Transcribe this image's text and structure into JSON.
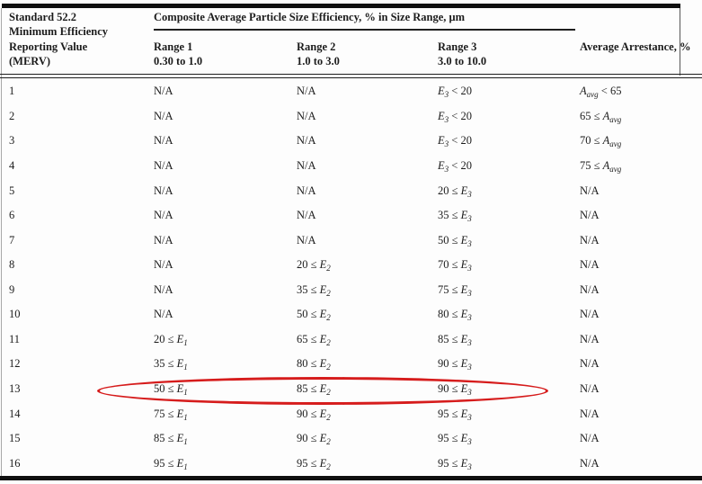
{
  "header": {
    "merv_lines": "Standard 52.2\nMinimum Efficiency\nReporting Value\n(MERV)",
    "composite_title": "Composite Average Particle Size Efficiency, % in Size Range, μm",
    "ranges": [
      {
        "name": "Range 1",
        "span": "0.30 to 1.0"
      },
      {
        "name": "Range 2",
        "span": "1.0 to 3.0"
      },
      {
        "name": "Range 3",
        "span": "3.0 to 10.0"
      }
    ],
    "arrestance_title": "Average Arrestance, %"
  },
  "rows": [
    {
      "merv": "1",
      "range1": "N/A",
      "range2": "N/A",
      "range3": "E_3 < 20",
      "arrestance": "A_avg < 65"
    },
    {
      "merv": "2",
      "range1": "N/A",
      "range2": "N/A",
      "range3": "E_3 < 20",
      "arrestance": "65 ≤ A_avg"
    },
    {
      "merv": "3",
      "range1": "N/A",
      "range2": "N/A",
      "range3": "E_3 < 20",
      "arrestance": "70 ≤ A_avg"
    },
    {
      "merv": "4",
      "range1": "N/A",
      "range2": "N/A",
      "range3": "E_3 < 20",
      "arrestance": "75 ≤ A_avg"
    },
    {
      "merv": "5",
      "range1": "N/A",
      "range2": "N/A",
      "range3": "20 ≤ E_3",
      "arrestance": "N/A"
    },
    {
      "merv": "6",
      "range1": "N/A",
      "range2": "N/A",
      "range3": "35 ≤ E_3",
      "arrestance": "N/A"
    },
    {
      "merv": "7",
      "range1": "N/A",
      "range2": "N/A",
      "range3": "50 ≤ E_3",
      "arrestance": "N/A"
    },
    {
      "merv": "8",
      "range1": "N/A",
      "range2": "20 ≤ E_2",
      "range3": "70 ≤ E_3",
      "arrestance": "N/A"
    },
    {
      "merv": "9",
      "range1": "N/A",
      "range2": "35 ≤ E_2",
      "range3": "75 ≤ E_3",
      "arrestance": "N/A"
    },
    {
      "merv": "10",
      "range1": "N/A",
      "range2": "50 ≤ E_2",
      "range3": "80 ≤ E_3",
      "arrestance": "N/A"
    },
    {
      "merv": "11",
      "range1": "20 ≤ E_1",
      "range2": "65 ≤ E_2",
      "range3": "85 ≤ E_3",
      "arrestance": "N/A"
    },
    {
      "merv": "12",
      "range1": "35 ≤ E_1",
      "range2": "80 ≤ E_2",
      "range3": "90 ≤ E_3",
      "arrestance": "N/A"
    },
    {
      "merv": "13",
      "range1": "50 ≤ E_1",
      "range2": "85 ≤ E_2",
      "range3": "90 ≤ E_3",
      "arrestance": "N/A"
    },
    {
      "merv": "14",
      "range1": "75 ≤ E_1",
      "range2": "90 ≤ E_2",
      "range3": "95 ≤ E_3",
      "arrestance": "N/A"
    },
    {
      "merv": "15",
      "range1": "85 ≤ E_1",
      "range2": "90 ≤ E_2",
      "range3": "95 ≤ E_3",
      "arrestance": "N/A"
    },
    {
      "merv": "16",
      "range1": "95 ≤ E_1",
      "range2": "95 ≤ E_2",
      "range3": "95 ≤ E_3",
      "arrestance": "N/A"
    }
  ],
  "annotation": {
    "shape": "ellipse",
    "color": "#d61c1c",
    "highlighted_merv": "13"
  }
}
